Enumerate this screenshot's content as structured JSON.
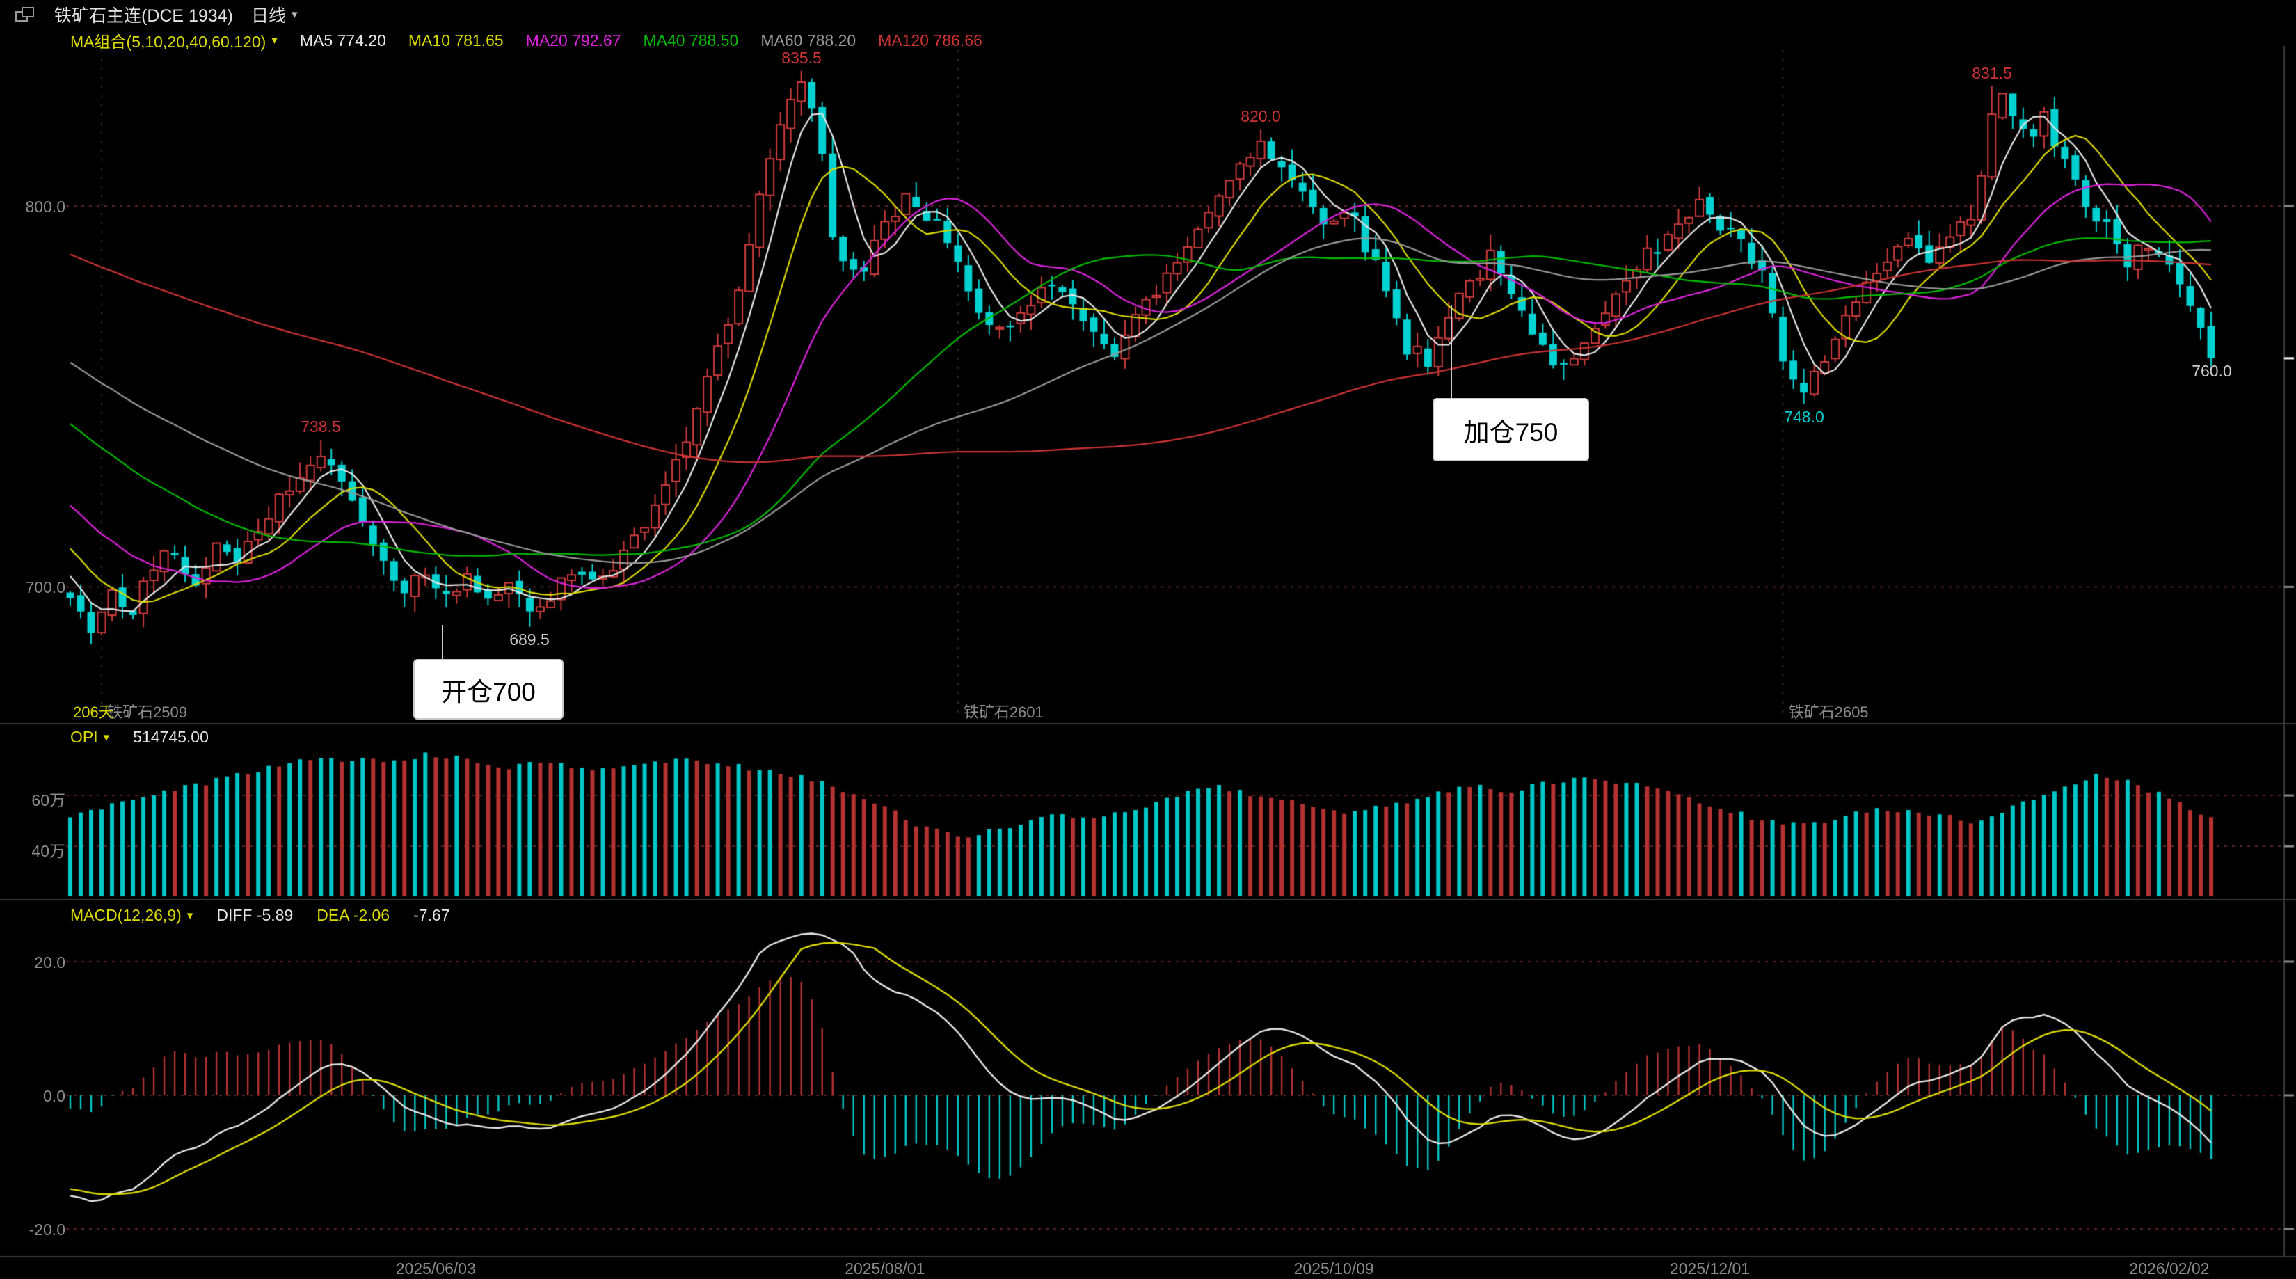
{
  "titlebar": {
    "title": "铁矿石主连(DCE 1934)",
    "period": "日线"
  },
  "ma_legend": {
    "group_label": "MA组合(5,10,20,40,60,120)",
    "items": [
      {
        "label": "MA5 774.20",
        "color": "#e6e6e6"
      },
      {
        "label": "MA10 781.65",
        "color": "#d9d900"
      },
      {
        "label": "MA20 792.67",
        "color": "#dd22dd"
      },
      {
        "label": "MA40 788.50",
        "color": "#00bb00"
      },
      {
        "label": "MA60 788.20",
        "color": "#999999"
      },
      {
        "label": "MA120 786.66",
        "color": "#cc3333"
      }
    ]
  },
  "main_chart": {
    "y_axis": {
      "labels": [
        {
          "text": "800.0"
        },
        {
          "text": "700.0"
        }
      ]
    },
    "price_labels": [
      {
        "text": "835.5",
        "color": "#cc3333"
      },
      {
        "text": "820.0",
        "color": "#cc3333"
      },
      {
        "text": "831.5",
        "color": "#cc3333"
      },
      {
        "text": "738.5",
        "color": "#cc3333"
      },
      {
        "text": "689.5",
        "color": "#cccccc"
      },
      {
        "text": "748.0",
        "color": "#00cccc"
      },
      {
        "text": "760.0",
        "color": "#cccccc"
      }
    ],
    "annotations": [
      {
        "text": "开仓700"
      },
      {
        "text": "加仓750"
      }
    ],
    "footer": {
      "days": "206天"
    }
  },
  "opi_panel": {
    "label": "OPI",
    "value": "514745.00",
    "y_axis": [
      {
        "text": "60万"
      },
      {
        "text": "40万"
      }
    ]
  },
  "macd_panel": {
    "label": "MACD(12,26,9)",
    "diff": "DIFF -5.89",
    "dea": "DEA -2.06",
    "hist": "-7.67",
    "y_axis": [
      {
        "text": "20.0"
      },
      {
        "text": "0.0"
      },
      {
        "text": "-20.0"
      }
    ]
  },
  "chart_data": [
    {
      "type": "candlestick",
      "symbol": "铁矿石主连 (DCE)",
      "period": "daily",
      "bars": 206,
      "days_label": "206天",
      "ylim": [
        665,
        842
      ],
      "gridlines": [
        800,
        700
      ],
      "grid_color": "#5e2222",
      "up_color": "#d13b3b",
      "down_color": "#00d2d2",
      "last_close": 760.0,
      "close_path_anchors": [
        [
          0,
          696
        ],
        [
          2,
          689
        ],
        [
          4,
          700
        ],
        [
          6,
          694
        ],
        [
          8,
          704
        ],
        [
          10,
          710
        ],
        [
          12,
          700
        ],
        [
          14,
          712
        ],
        [
          16,
          707
        ],
        [
          18,
          715
        ],
        [
          21,
          726
        ],
        [
          24,
          734
        ],
        [
          26,
          729
        ],
        [
          28,
          718
        ],
        [
          30,
          706
        ],
        [
          32,
          700
        ],
        [
          34,
          704
        ],
        [
          36,
          699
        ],
        [
          38,
          703
        ],
        [
          40,
          697
        ],
        [
          42,
          700
        ],
        [
          44,
          692
        ],
        [
          46,
          698
        ],
        [
          48,
          703
        ],
        [
          50,
          700
        ],
        [
          52,
          706
        ],
        [
          54,
          712
        ],
        [
          56,
          722
        ],
        [
          58,
          731
        ],
        [
          60,
          745
        ],
        [
          62,
          762
        ],
        [
          64,
          780
        ],
        [
          66,
          803
        ],
        [
          68,
          820
        ],
        [
          70,
          831
        ],
        [
          71,
          825
        ],
        [
          72,
          812
        ],
        [
          73,
          790
        ],
        [
          74,
          785
        ],
        [
          76,
          783
        ],
        [
          78,
          795
        ],
        [
          80,
          801
        ],
        [
          82,
          797
        ],
        [
          84,
          792
        ],
        [
          86,
          780
        ],
        [
          88,
          768
        ],
        [
          90,
          766
        ],
        [
          92,
          774
        ],
        [
          94,
          781
        ],
        [
          96,
          776
        ],
        [
          98,
          768
        ],
        [
          100,
          760
        ],
        [
          102,
          770
        ],
        [
          104,
          778
        ],
        [
          106,
          785
        ],
        [
          108,
          794
        ],
        [
          110,
          803
        ],
        [
          112,
          812
        ],
        [
          114,
          817
        ],
        [
          116,
          810
        ],
        [
          118,
          803
        ],
        [
          120,
          797
        ],
        [
          122,
          800
        ],
        [
          124,
          790
        ],
        [
          126,
          778
        ],
        [
          128,
          763
        ],
        [
          130,
          760
        ],
        [
          132,
          772
        ],
        [
          134,
          780
        ],
        [
          136,
          786
        ],
        [
          138,
          776
        ],
        [
          140,
          766
        ],
        [
          142,
          758
        ],
        [
          144,
          762
        ],
        [
          146,
          770
        ],
        [
          148,
          776
        ],
        [
          150,
          783
        ],
        [
          152,
          790
        ],
        [
          154,
          796
        ],
        [
          156,
          800
        ],
        [
          158,
          795
        ],
        [
          160,
          789
        ],
        [
          162,
          783
        ],
        [
          163,
          770
        ],
        [
          164,
          757
        ],
        [
          166,
          750
        ],
        [
          168,
          760
        ],
        [
          170,
          770
        ],
        [
          172,
          779
        ],
        [
          174,
          785
        ],
        [
          176,
          789
        ],
        [
          178,
          786
        ],
        [
          180,
          791
        ],
        [
          182,
          797
        ],
        [
          183,
          806
        ],
        [
          184,
          825
        ],
        [
          185,
          829
        ],
        [
          186,
          824
        ],
        [
          188,
          818
        ],
        [
          189,
          823
        ],
        [
          190,
          815
        ],
        [
          192,
          806
        ],
        [
          194,
          797
        ],
        [
          196,
          790
        ],
        [
          197,
          785
        ],
        [
          198,
          789
        ],
        [
          200,
          786
        ],
        [
          202,
          781
        ],
        [
          203,
          772
        ],
        [
          204,
          766
        ],
        [
          205,
          760
        ]
      ],
      "pinned_extremes": [
        {
          "index": 24,
          "type": "high",
          "value": 738.5
        },
        {
          "index": 44,
          "type": "low",
          "value": 689.5
        },
        {
          "index": 70,
          "type": "high",
          "value": 835.5
        },
        {
          "index": 114,
          "type": "high",
          "value": 820.0
        },
        {
          "index": 166,
          "type": "low",
          "value": 748.0
        },
        {
          "index": 184,
          "type": "high",
          "value": 831.5
        }
      ],
      "ma_series": [
        {
          "name": "MA5",
          "period": 5,
          "value": 774.2,
          "color": "#e6e6e6"
        },
        {
          "name": "MA10",
          "period": 10,
          "value": 781.65,
          "color": "#d9d900"
        },
        {
          "name": "MA20",
          "period": 20,
          "value": 792.67,
          "color": "#dd22dd"
        },
        {
          "name": "MA40",
          "period": 40,
          "value": 788.5,
          "color": "#00bb00"
        },
        {
          "name": "MA60",
          "period": 60,
          "value": 788.2,
          "color": "#999999"
        },
        {
          "name": "MA120",
          "period": 120,
          "value": 786.66,
          "color": "#cc3333"
        }
      ],
      "x_date_ticks": [
        {
          "index": 35,
          "label": "2025/06/03"
        },
        {
          "index": 78,
          "label": "2025/08/01"
        },
        {
          "index": 121,
          "label": "2025/10/09"
        },
        {
          "index": 157,
          "label": "2025/12/01"
        },
        {
          "index": 201,
          "label": "2026/02/02"
        }
      ],
      "contract_marks": [
        {
          "index": 3,
          "label": "铁矿石2509"
        },
        {
          "index": 85,
          "label": "铁矿石2601"
        },
        {
          "index": 164,
          "label": "铁矿石2605"
        }
      ],
      "annotations": [
        {
          "text": "开仓700",
          "anchor_index": 36,
          "anchor_price": 700
        },
        {
          "text": "加仓750",
          "anchor_index": 132,
          "anchor_price": 750
        }
      ]
    },
    {
      "type": "bar",
      "name": "OPI",
      "last_value": 514745.0,
      "ylim_wan": [
        20.3,
        87.7
      ],
      "gridlines_wan": [
        60,
        40
      ],
      "increase_color": "#00c8c8",
      "decrease_color": "#b43232",
      "anchors_wan": [
        [
          0,
          52
        ],
        [
          6,
          58
        ],
        [
          12,
          64
        ],
        [
          18,
          70
        ],
        [
          24,
          75
        ],
        [
          30,
          73
        ],
        [
          34,
          76
        ],
        [
          38,
          74
        ],
        [
          42,
          71
        ],
        [
          46,
          73
        ],
        [
          50,
          70
        ],
        [
          54,
          72
        ],
        [
          58,
          74
        ],
        [
          62,
          73
        ],
        [
          66,
          70
        ],
        [
          70,
          68
        ],
        [
          74,
          62
        ],
        [
          78,
          55
        ],
        [
          82,
          47
        ],
        [
          86,
          44
        ],
        [
          90,
          48
        ],
        [
          94,
          52
        ],
        [
          98,
          50
        ],
        [
          102,
          55
        ],
        [
          106,
          60
        ],
        [
          110,
          63
        ],
        [
          114,
          60
        ],
        [
          118,
          56
        ],
        [
          122,
          52
        ],
        [
          126,
          56
        ],
        [
          130,
          60
        ],
        [
          134,
          64
        ],
        [
          138,
          62
        ],
        [
          142,
          65
        ],
        [
          146,
          67
        ],
        [
          150,
          64
        ],
        [
          154,
          60
        ],
        [
          158,
          55
        ],
        [
          162,
          50
        ],
        [
          166,
          48
        ],
        [
          170,
          52
        ],
        [
          174,
          55
        ],
        [
          178,
          53
        ],
        [
          182,
          50
        ],
        [
          186,
          55
        ],
        [
          190,
          62
        ],
        [
          194,
          68
        ],
        [
          198,
          64
        ],
        [
          202,
          57
        ],
        [
          205,
          51.47
        ]
      ]
    },
    {
      "type": "macd",
      "params": [
        12,
        26,
        9
      ],
      "diff": -5.89,
      "dea": -2.06,
      "hist": -7.67,
      "ylim": [
        -24.8,
        26.1
      ],
      "gridlines": [
        20,
        0,
        -20
      ],
      "diff_color": "#e6e6e6",
      "dea_color": "#d9d900",
      "pos_color": "#b43232",
      "neg_color": "#00c8c8"
    }
  ]
}
